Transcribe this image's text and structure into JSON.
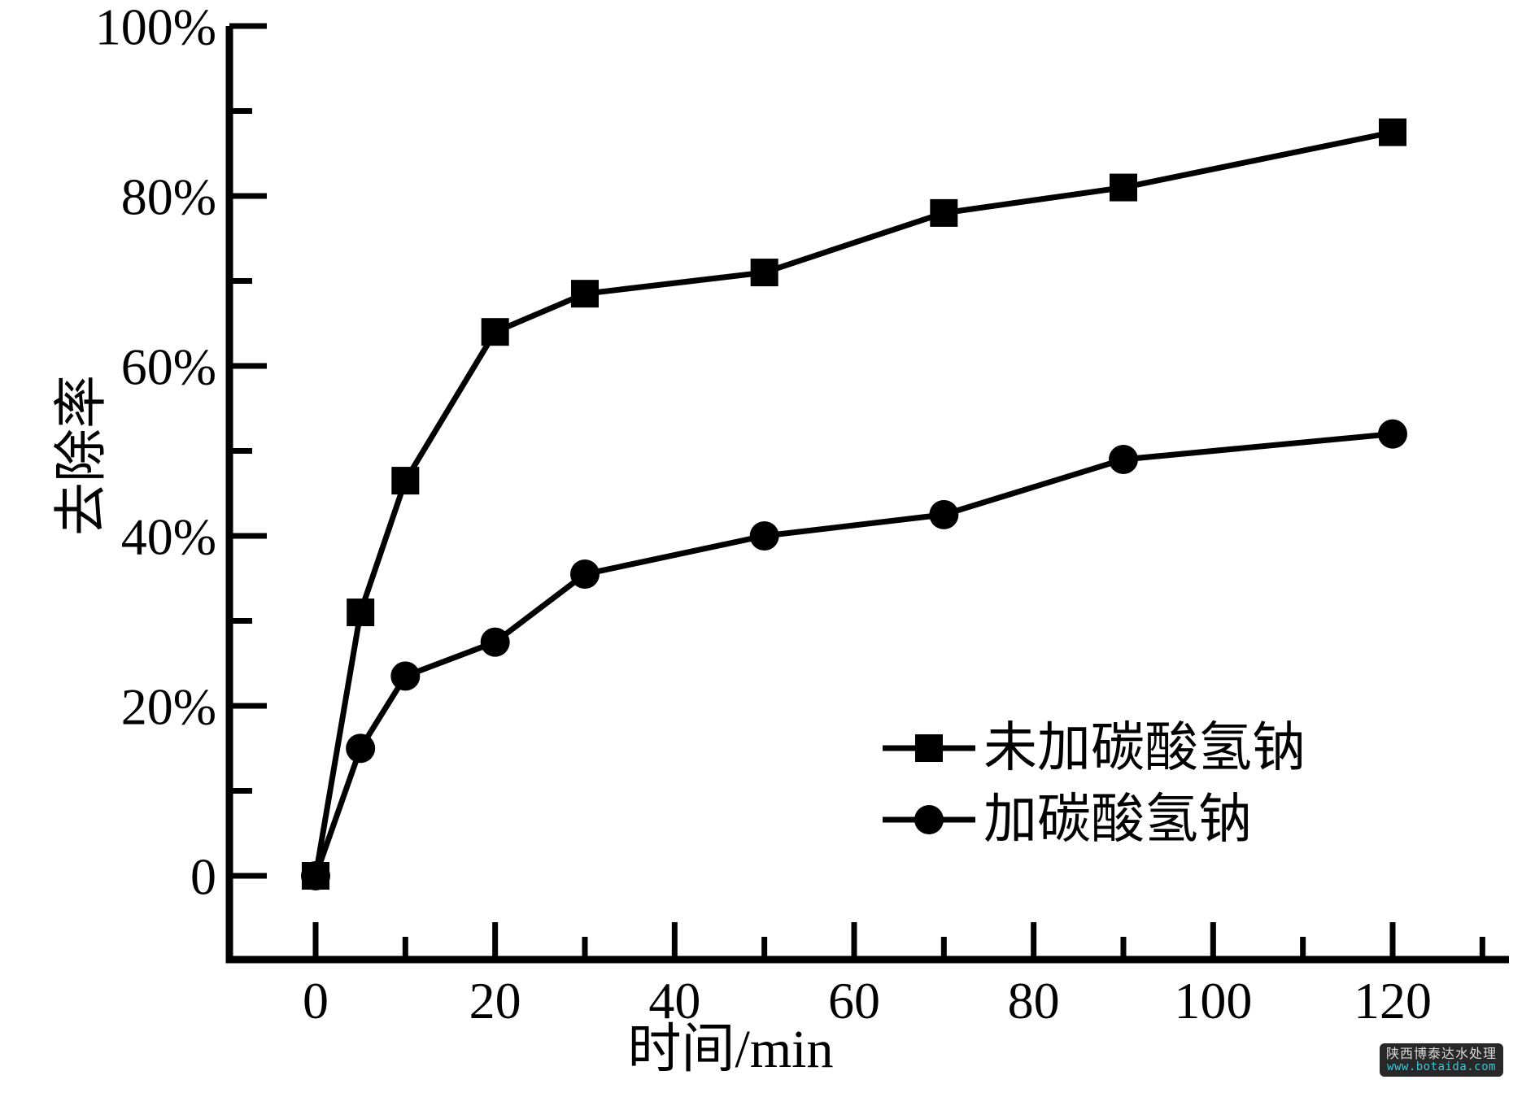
{
  "chart_data": {
    "type": "line",
    "title": "",
    "xlabel": "时间/min",
    "ylabel": "去除率",
    "x": [
      0,
      5,
      10,
      20,
      30,
      50,
      70,
      90,
      120
    ],
    "series": [
      {
        "name": "未加碳酸氢钠",
        "marker": "square",
        "color": "#000000",
        "values": [
          0,
          31,
          46.5,
          64,
          68.5,
          71,
          78,
          81,
          87.5
        ]
      },
      {
        "name": "加碳酸氢钠",
        "marker": "circle",
        "color": "#000000",
        "values": [
          0,
          15,
          23.5,
          27.5,
          35.5,
          40,
          42.5,
          49,
          52
        ]
      }
    ],
    "x_ticks_major": [
      0,
      20,
      40,
      60,
      80,
      100,
      120
    ],
    "x_tick_labels": [
      "0",
      "20",
      "40",
      "60",
      "80",
      "100",
      "120"
    ],
    "x_ticks_minor": [
      10,
      30,
      50,
      70,
      90,
      110,
      130
    ],
    "y_ticks_major": [
      0,
      20,
      40,
      60,
      80,
      100
    ],
    "y_tick_labels": [
      "0",
      "20%",
      "40%",
      "60%",
      "80%",
      "100%"
    ],
    "y_ticks_minor": [
      10,
      30,
      50,
      70,
      90
    ],
    "xlim": [
      -10,
      133
    ],
    "ylim": [
      -10,
      100
    ],
    "grid": false,
    "legend_position": "inside lower right",
    "axis_color": "#000000",
    "background": "#ffffff"
  },
  "watermark": {
    "line1": "陕西博泰达水处理",
    "line2": "www.botaida.com",
    "bg_color": "#282828",
    "line1_color": "#d9d9d9",
    "line2_color": "#38c7da"
  }
}
